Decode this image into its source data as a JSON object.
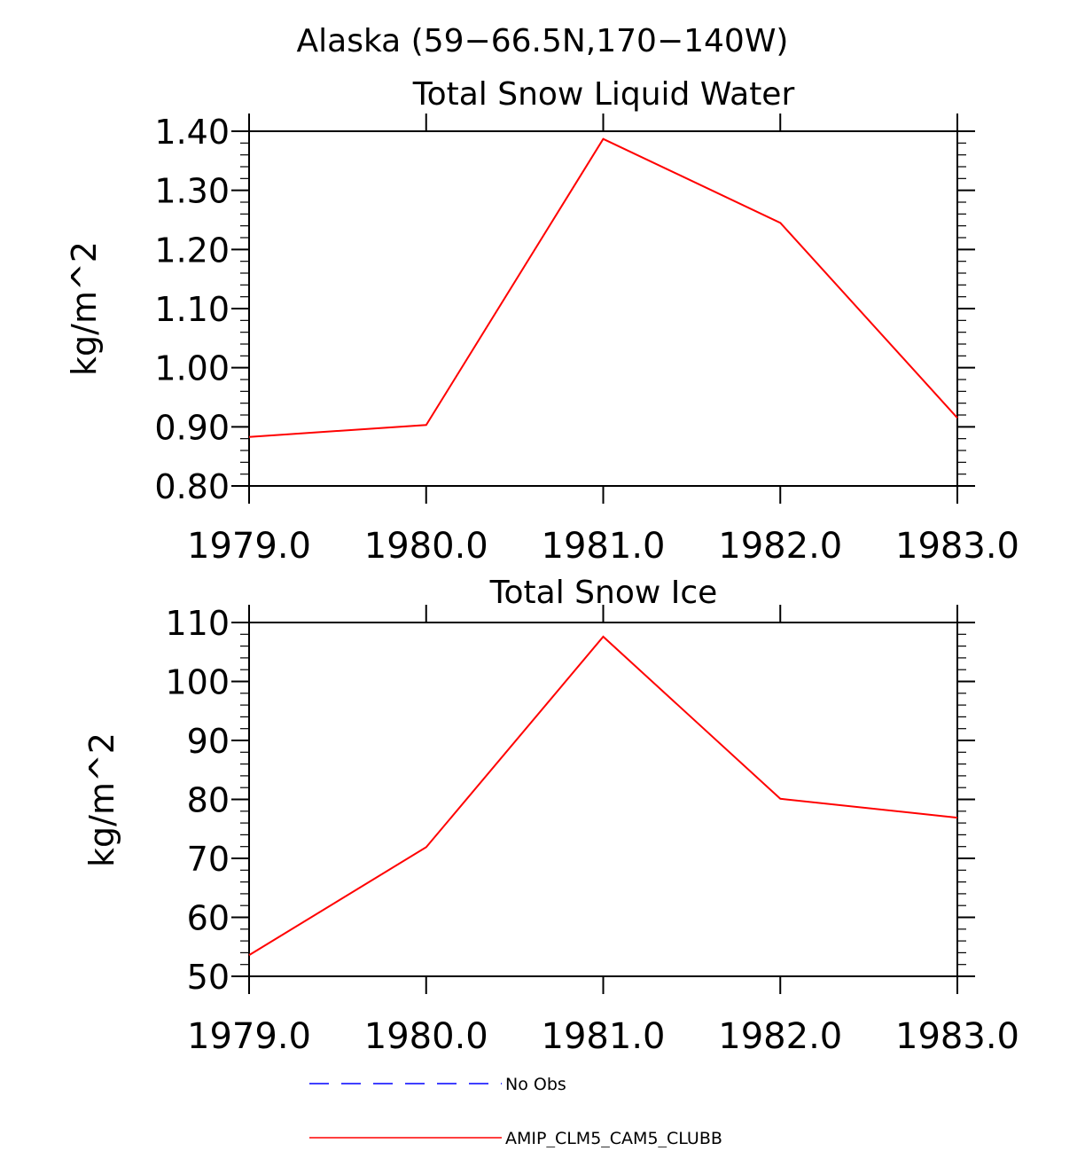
{
  "page_title": "Alaska (59−66.5N,170−140W)",
  "chart_data": [
    {
      "type": "line",
      "title": "Total Snow Liquid Water",
      "xlabel": "",
      "ylabel": "kg/m^2",
      "xlim": [
        1979.0,
        1983.0
      ],
      "ylim": [
        0.8,
        1.4
      ],
      "xticks": [
        "1979.0",
        "1980.0",
        "1981.0",
        "1982.0",
        "1983.0"
      ],
      "xtick_values": [
        1979,
        1980,
        1981,
        1982,
        1983
      ],
      "yticks": [
        "0.80",
        "0.90",
        "1.00",
        "1.10",
        "1.20",
        "1.30",
        "1.40"
      ],
      "ytick_values": [
        0.8,
        0.9,
        1.0,
        1.1,
        1.2,
        1.3,
        1.4
      ],
      "series": [
        {
          "name": "AMIP_CLM5_CAM5_CLUBB",
          "color": "#ff0000",
          "x": [
            1979,
            1980,
            1981,
            1982,
            1983
          ],
          "values": [
            0.883,
            0.903,
            1.387,
            1.245,
            0.915
          ]
        }
      ]
    },
    {
      "type": "line",
      "title": "Total Snow Ice",
      "xlabel": "",
      "ylabel": "kg/m^2",
      "xlim": [
        1979.0,
        1983.0
      ],
      "ylim": [
        50,
        110
      ],
      "xticks": [
        "1979.0",
        "1980.0",
        "1981.0",
        "1982.0",
        "1983.0"
      ],
      "xtick_values": [
        1979,
        1980,
        1981,
        1982,
        1983
      ],
      "yticks": [
        "50",
        "60",
        "70",
        "80",
        "90",
        "100",
        "110"
      ],
      "ytick_values": [
        50,
        60,
        70,
        80,
        90,
        100,
        110
      ],
      "series": [
        {
          "name": "AMIP_CLM5_CAM5_CLUBB",
          "color": "#ff0000",
          "x": [
            1979,
            1980,
            1981,
            1982,
            1983
          ],
          "values": [
            53.6,
            71.9,
            107.6,
            80.1,
            76.9
          ]
        }
      ]
    }
  ],
  "legend": [
    {
      "label": "No Obs",
      "color": "#0000ff",
      "style": "dashed"
    },
    {
      "label": "AMIP_CLM5_CAM5_CLUBB",
      "color": "#ff0000",
      "style": "solid"
    }
  ]
}
